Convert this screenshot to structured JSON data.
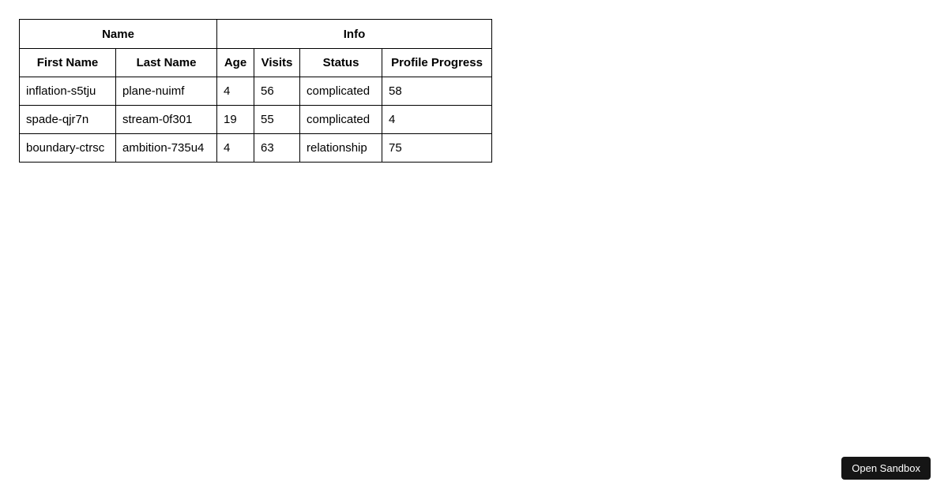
{
  "table": {
    "groups": [
      {
        "label": "Name"
      },
      {
        "label": "Info"
      }
    ],
    "columns": {
      "first_name": "First Name",
      "last_name": "Last Name",
      "age": "Age",
      "visits": "Visits",
      "status": "Status",
      "profile_progress": "Profile Progress"
    },
    "rows": [
      [
        "inflation-s5tju",
        "plane-nuimf",
        "4",
        "56",
        "complicated",
        "58"
      ],
      [
        "spade-qjr7n",
        "stream-0f301",
        "19",
        "55",
        "complicated",
        "4"
      ],
      [
        "boundary-ctrsc",
        "ambition-735u4",
        "4",
        "63",
        "relationship",
        "75"
      ]
    ]
  },
  "sandbox": {
    "open_button_label": "Open Sandbox"
  },
  "colors": {
    "table_border": "#000000",
    "button_background": "#151515",
    "button_text": "#ffffff",
    "page_background": "#ffffff"
  }
}
